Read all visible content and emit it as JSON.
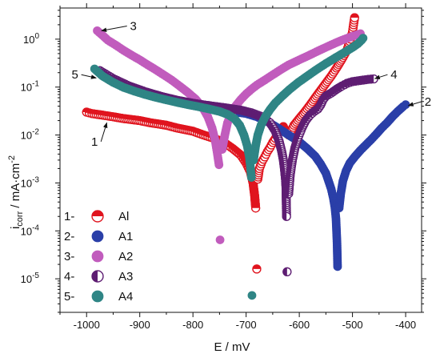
{
  "chart_data": {
    "type": "scatter",
    "xlabel": "E / mV",
    "ylabel_parts": {
      "base": "i",
      "sub": "corr",
      "unit": " / mA·cm",
      "sup": "-2"
    },
    "xlim": [
      -1050,
      -370
    ],
    "ylim_log10": [
      -5.7,
      0.65
    ],
    "log_y": true,
    "grid": false,
    "legend_position": "bottom-left",
    "x_ticks": [
      {
        "value": -1000,
        "label": "-1000"
      },
      {
        "value": -900,
        "label": "-900"
      },
      {
        "value": -800,
        "label": "-800"
      },
      {
        "value": -700,
        "label": "-700"
      },
      {
        "value": -600,
        "label": "-600"
      },
      {
        "value": -500,
        "label": "-500"
      },
      {
        "value": -400,
        "label": "-400"
      }
    ],
    "y_ticks": [
      {
        "exp": 0,
        "base": "10",
        "sup": "0"
      },
      {
        "exp": -1,
        "base": "10",
        "sup": "-1"
      },
      {
        "exp": -2,
        "base": "10",
        "sup": "-2"
      },
      {
        "exp": -3,
        "base": "10",
        "sup": "-3"
      },
      {
        "exp": -4,
        "base": "10",
        "sup": "-4"
      },
      {
        "exp": -5,
        "base": "10",
        "sup": "-5"
      }
    ],
    "series": [
      {
        "name": "Al",
        "legend_index": "1-",
        "color": "#e0141e",
        "marker": "half-filled-top",
        "points": [
          [
            -1000,
            0.03
          ],
          [
            -990,
            0.028
          ],
          [
            -970,
            0.026
          ],
          [
            -950,
            0.024
          ],
          [
            -930,
            0.022
          ],
          [
            -900,
            0.02
          ],
          [
            -880,
            0.018
          ],
          [
            -850,
            0.016
          ],
          [
            -830,
            0.014
          ],
          [
            -800,
            0.012
          ],
          [
            -780,
            0.01
          ],
          [
            -760,
            0.0085
          ],
          [
            -740,
            0.0068
          ],
          [
            -725,
            0.0052
          ],
          [
            -710,
            0.0038
          ],
          [
            -700,
            0.0026
          ],
          [
            -692,
            0.0017
          ],
          [
            -687,
            0.001
          ],
          [
            -684,
            0.00055
          ],
          [
            -682,
            0.0003
          ],
          [
            -680,
            1.6e-05
          ],
          [
            -678,
            0.0012
          ],
          [
            -675,
            0.002
          ],
          [
            -670,
            0.0028
          ],
          [
            -665,
            0.0035
          ],
          [
            -660,
            0.0045
          ],
          [
            -655,
            0.0055
          ],
          [
            -650,
            0.007
          ],
          [
            -645,
            0.0085
          ],
          [
            -640,
            0.011
          ],
          [
            -635,
            0.013
          ],
          [
            -630,
            0.015
          ],
          [
            -625,
            0.012
          ],
          [
            -620,
            0.01
          ],
          [
            -615,
            0.012
          ],
          [
            -610,
            0.016
          ],
          [
            -600,
            0.022
          ],
          [
            -590,
            0.03
          ],
          [
            -580,
            0.042
          ],
          [
            -570,
            0.06
          ],
          [
            -560,
            0.085
          ],
          [
            -550,
            0.12
          ],
          [
            -540,
            0.17
          ],
          [
            -530,
            0.25
          ],
          [
            -520,
            0.38
          ],
          [
            -510,
            0.6
          ],
          [
            -505,
            0.9
          ],
          [
            -500,
            1.4
          ],
          [
            -498,
            2.0
          ],
          [
            -496,
            2.8
          ]
        ]
      },
      {
        "name": "A1",
        "legend_index": "2-",
        "color": "#2a3fa8",
        "marker": "filled",
        "points": [
          [
            -720,
            0.03
          ],
          [
            -700,
            0.028
          ],
          [
            -680,
            0.024
          ],
          [
            -660,
            0.019
          ],
          [
            -640,
            0.014
          ],
          [
            -620,
            0.01
          ],
          [
            -600,
            0.0072
          ],
          [
            -585,
            0.0052
          ],
          [
            -570,
            0.0036
          ],
          [
            -560,
            0.0025
          ],
          [
            -550,
            0.0016
          ],
          [
            -545,
            0.0011
          ],
          [
            -540,
            0.00075
          ],
          [
            -536,
            0.00048
          ],
          [
            -533,
            0.0003
          ],
          [
            -531,
            0.00018
          ],
          [
            -530,
            0.0001
          ],
          [
            -529,
            5.5e-05
          ],
          [
            -528,
            1.8e-05
          ],
          [
            -525,
            0.0003
          ],
          [
            -522,
            0.0006
          ],
          [
            -518,
            0.0011
          ],
          [
            -512,
            0.0018
          ],
          [
            -505,
            0.0026
          ],
          [
            -495,
            0.0036
          ],
          [
            -485,
            0.0048
          ],
          [
            -475,
            0.0062
          ],
          [
            -465,
            0.008
          ],
          [
            -455,
            0.0105
          ],
          [
            -445,
            0.014
          ],
          [
            -435,
            0.018
          ],
          [
            -425,
            0.024
          ],
          [
            -415,
            0.031
          ],
          [
            -405,
            0.039
          ],
          [
            -400,
            0.043
          ]
        ]
      },
      {
        "name": "A2",
        "legend_index": "3-",
        "color": "#c15cbd",
        "marker": "filled",
        "points": [
          [
            -980,
            1.5
          ],
          [
            -970,
            1.2
          ],
          [
            -960,
            0.95
          ],
          [
            -945,
            0.75
          ],
          [
            -930,
            0.58
          ],
          [
            -915,
            0.46
          ],
          [
            -900,
            0.37
          ],
          [
            -885,
            0.29
          ],
          [
            -870,
            0.23
          ],
          [
            -855,
            0.18
          ],
          [
            -840,
            0.14
          ],
          [
            -825,
            0.105
          ],
          [
            -810,
            0.078
          ],
          [
            -795,
            0.056
          ],
          [
            -782,
            0.038
          ],
          [
            -772,
            0.024
          ],
          [
            -764,
            0.014
          ],
          [
            -758,
            0.0075
          ],
          [
            -754,
            0.004
          ],
          [
            -751,
            0.0024
          ],
          [
            -749,
            6.5e-05
          ],
          [
            -745,
            0.005
          ],
          [
            -740,
            0.01
          ],
          [
            -735,
            0.018
          ],
          [
            -728,
            0.028
          ],
          [
            -720,
            0.04
          ],
          [
            -710,
            0.055
          ],
          [
            -700,
            0.072
          ],
          [
            -690,
            0.09
          ],
          [
            -680,
            0.11
          ],
          [
            -665,
            0.14
          ],
          [
            -650,
            0.18
          ],
          [
            -635,
            0.23
          ],
          [
            -620,
            0.29
          ],
          [
            -600,
            0.37
          ],
          [
            -580,
            0.47
          ],
          [
            -560,
            0.6
          ],
          [
            -540,
            0.76
          ],
          [
            -520,
            0.95
          ],
          [
            -500,
            1.15
          ],
          [
            -485,
            1.3
          ]
        ]
      },
      {
        "name": "A3",
        "legend_index": "4-",
        "color": "#5e1d72",
        "marker": "half-filled-left",
        "points": [
          [
            -975,
            0.22
          ],
          [
            -950,
            0.15
          ],
          [
            -920,
            0.105
          ],
          [
            -890,
            0.08
          ],
          [
            -860,
            0.064
          ],
          [
            -830,
            0.053
          ],
          [
            -800,
            0.046
          ],
          [
            -770,
            0.041
          ],
          [
            -740,
            0.037
          ],
          [
            -710,
            0.033
          ],
          [
            -690,
            0.029
          ],
          [
            -670,
            0.024
          ],
          [
            -655,
            0.018
          ],
          [
            -645,
            0.012
          ],
          [
            -638,
            0.0075
          ],
          [
            -633,
            0.0045
          ],
          [
            -630,
            0.003
          ],
          [
            -628,
            0.002
          ],
          [
            -626,
            0.0012
          ],
          [
            -625,
            0.0008
          ],
          [
            -624,
            0.0002
          ],
          [
            -623,
            1.4e-05
          ],
          [
            -620,
            0.0006
          ],
          [
            -617,
            0.0015
          ],
          [
            -613,
            0.003
          ],
          [
            -608,
            0.0055
          ],
          [
            -602,
            0.009
          ],
          [
            -595,
            0.014
          ],
          [
            -588,
            0.02
          ],
          [
            -580,
            0.026
          ],
          [
            -572,
            0.031
          ],
          [
            -565,
            0.035
          ],
          [
            -560,
            0.042
          ],
          [
            -555,
            0.055
          ],
          [
            -550,
            0.065
          ],
          [
            -540,
            0.075
          ],
          [
            -530,
            0.09
          ],
          [
            -520,
            0.105
          ],
          [
            -510,
            0.12
          ],
          [
            -500,
            0.13
          ],
          [
            -490,
            0.135
          ],
          [
            -480,
            0.14
          ],
          [
            -470,
            0.145
          ],
          [
            -460,
            0.148
          ]
        ]
      },
      {
        "name": "A4",
        "legend_index": "5-",
        "color": "#2f8585",
        "marker": "filled",
        "points": [
          [
            -985,
            0.24
          ],
          [
            -970,
            0.17
          ],
          [
            -950,
            0.125
          ],
          [
            -930,
            0.098
          ],
          [
            -910,
            0.082
          ],
          [
            -890,
            0.07
          ],
          [
            -870,
            0.061
          ],
          [
            -850,
            0.054
          ],
          [
            -830,
            0.048
          ],
          [
            -810,
            0.043
          ],
          [
            -790,
            0.039
          ],
          [
            -770,
            0.035
          ],
          [
            -750,
            0.031
          ],
          [
            -735,
            0.027
          ],
          [
            -722,
            0.022
          ],
          [
            -712,
            0.016
          ],
          [
            -704,
            0.01
          ],
          [
            -698,
            0.006
          ],
          [
            -694,
            0.0035
          ],
          [
            -692,
            0.0022
          ],
          [
            -690,
            0.0013
          ],
          [
            -689,
            4.5e-06
          ],
          [
            -686,
            0.003
          ],
          [
            -682,
            0.006
          ],
          [
            -678,
            0.01
          ],
          [
            -672,
            0.016
          ],
          [
            -664,
            0.024
          ],
          [
            -655,
            0.034
          ],
          [
            -645,
            0.047
          ],
          [
            -632,
            0.065
          ],
          [
            -618,
            0.09
          ],
          [
            -602,
            0.125
          ],
          [
            -585,
            0.17
          ],
          [
            -568,
            0.23
          ],
          [
            -550,
            0.31
          ],
          [
            -532,
            0.41
          ],
          [
            -515,
            0.53
          ],
          [
            -500,
            0.67
          ],
          [
            -490,
            0.8
          ],
          [
            -483,
            0.95
          ],
          [
            -480,
            1.05
          ]
        ]
      }
    ],
    "annotations": [
      {
        "text": "1",
        "label_at": [
          -985,
          0.006
        ],
        "arrow_to": [
          -962,
          0.018
        ]
      },
      {
        "text": "2",
        "label_at": [
          -358,
          0.041
        ],
        "arrow_to": [
          -395,
          0.041
        ]
      },
      {
        "text": "3",
        "label_at": [
          -912,
          1.55
        ],
        "arrow_to": [
          -972,
          1.5
        ]
      },
      {
        "text": "4",
        "label_at": [
          -422,
          0.15
        ],
        "arrow_to": [
          -458,
          0.15
        ]
      },
      {
        "text": "5",
        "label_at": [
          -1022,
          0.15
        ],
        "arrow_to": [
          -982,
          0.155
        ]
      }
    ]
  }
}
